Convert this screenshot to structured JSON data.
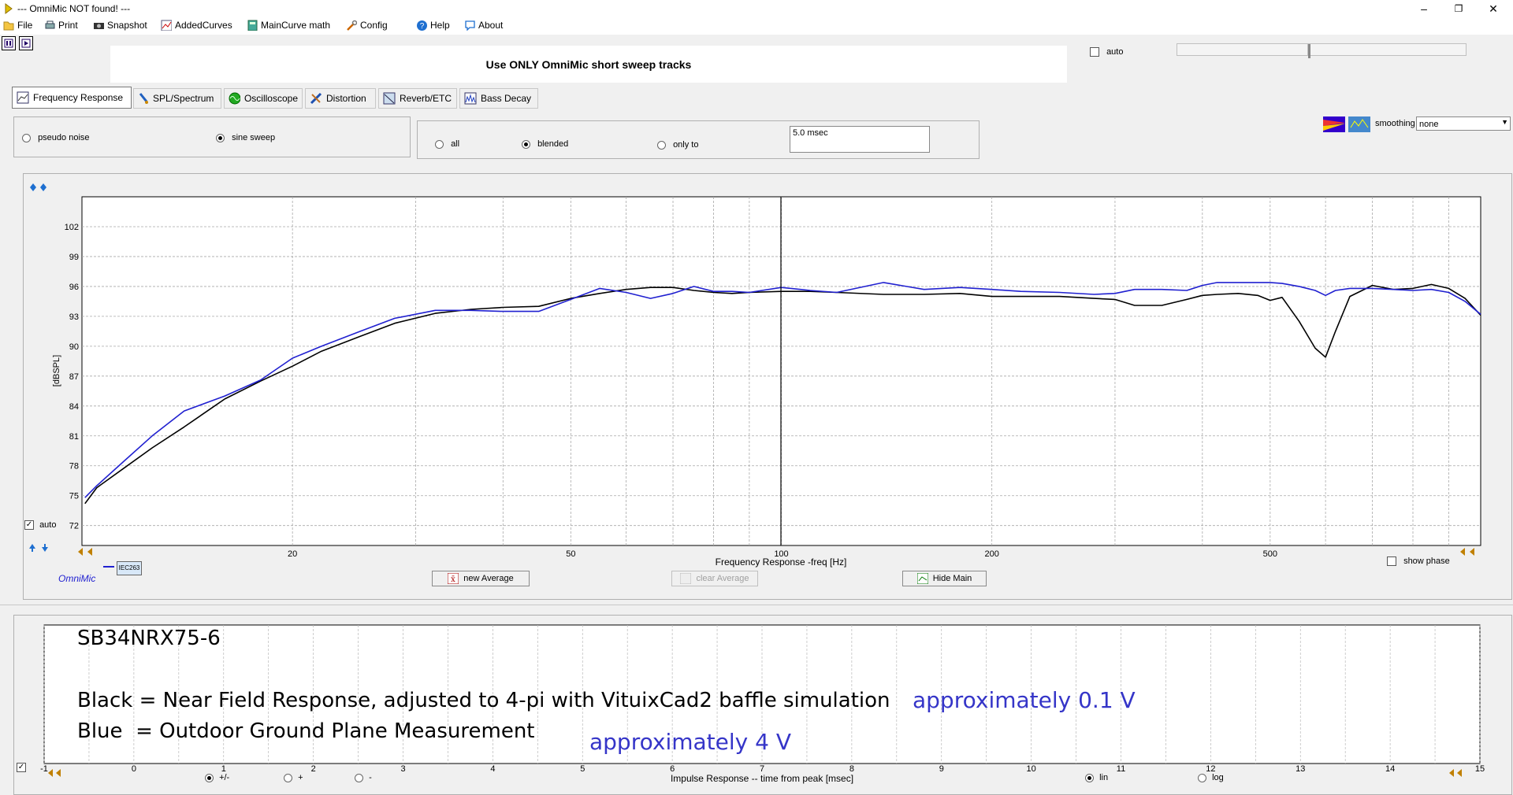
{
  "window": {
    "title": "--- OmniMic NOT found! ---"
  },
  "menu": [
    "File",
    "Print",
    "Snapshot",
    "AddedCurves",
    "MainCurve math",
    "Config",
    "Help",
    "About"
  ],
  "banner": "Use ONLY OmniMic short sweep tracks",
  "top_right": {
    "auto_label": "auto"
  },
  "tabs": [
    "Frequency Response",
    "SPL/Spectrum",
    "Oscilloscope",
    "Distortion",
    "Reverb/ETC",
    "Bass Decay"
  ],
  "signal": {
    "pseudo_noise": "pseudo noise",
    "sine_sweep": "sine sweep"
  },
  "gating": {
    "all": "all",
    "blended": "blended",
    "only_to": "only to",
    "gate_value": "5.0 msec"
  },
  "smoothing": {
    "label": "smoothing",
    "value": "none"
  },
  "colors": {
    "black_curve": "#000000",
    "blue_curve": "#2020d0",
    "grid": "#a0a0a0"
  },
  "chart_data": {
    "type": "line",
    "xlabel": "Frequency Response -freq [Hz]",
    "ylabel": "[dBSPL]",
    "xscale": "log",
    "xlim": [
      10,
      1000
    ],
    "ylim": [
      70,
      105
    ],
    "x_tick_labels": [
      "20",
      "50",
      "100",
      "200",
      "500"
    ],
    "y_tick_labels": [
      "72",
      "75",
      "78",
      "81",
      "84",
      "87",
      "90",
      "93",
      "96",
      "99",
      "102"
    ],
    "grid": true,
    "series": [
      {
        "color": "#000000",
        "x": [
          10.1,
          10.5,
          11.5,
          12.6,
          14,
          16,
          18,
          20,
          22,
          25,
          28,
          32,
          36,
          40,
          45,
          50,
          55,
          60,
          65,
          70,
          75,
          80,
          85,
          90,
          100,
          110,
          120,
          140,
          160,
          180,
          200,
          220,
          250,
          280,
          300,
          320,
          350,
          380,
          400,
          420,
          450,
          480,
          500,
          520,
          550,
          580,
          600,
          620,
          650,
          700,
          750,
          800,
          850,
          900,
          950,
          1000
        ],
        "y": [
          74.2,
          75.8,
          77.8,
          79.8,
          81.9,
          84.7,
          86.5,
          88.0,
          89.5,
          91.0,
          92.3,
          93.3,
          93.7,
          93.9,
          94.0,
          94.8,
          95.3,
          95.7,
          95.9,
          95.9,
          95.6,
          95.4,
          95.3,
          95.4,
          95.5,
          95.5,
          95.4,
          95.2,
          95.2,
          95.3,
          95.0,
          95.0,
          95.0,
          94.8,
          94.7,
          94.1,
          94.1,
          94.7,
          95.1,
          95.2,
          95.3,
          95.1,
          94.6,
          94.9,
          92.5,
          89.8,
          88.9,
          91.5,
          95.0,
          96.1,
          95.7,
          95.8,
          96.2,
          95.8,
          94.8,
          93.1
        ]
      },
      {
        "color": "#2020d0",
        "x": [
          10.1,
          10.5,
          11.5,
          12.6,
          14,
          16,
          18,
          20,
          22,
          25,
          28,
          32,
          36,
          40,
          45,
          50,
          55,
          60,
          65,
          70,
          75,
          80,
          85,
          90,
          100,
          110,
          120,
          140,
          160,
          180,
          200,
          220,
          250,
          280,
          300,
          320,
          350,
          380,
          400,
          420,
          450,
          480,
          500,
          520,
          550,
          580,
          600,
          620,
          650,
          700,
          750,
          800,
          850,
          900,
          950,
          1000
        ],
        "y": [
          74.8,
          76.0,
          78.5,
          81.0,
          83.5,
          85.0,
          86.6,
          88.8,
          90.0,
          91.5,
          92.8,
          93.6,
          93.6,
          93.5,
          93.5,
          94.7,
          95.8,
          95.4,
          94.8,
          95.3,
          96.0,
          95.5,
          95.5,
          95.4,
          95.9,
          95.6,
          95.4,
          96.4,
          95.7,
          95.9,
          95.7,
          95.5,
          95.4,
          95.2,
          95.3,
          95.7,
          95.7,
          95.6,
          96.1,
          96.4,
          96.4,
          96.4,
          96.4,
          96.3,
          96.0,
          95.6,
          95.1,
          95.6,
          95.8,
          95.8,
          95.7,
          95.6,
          95.7,
          95.4,
          94.5,
          93.2
        ]
      }
    ]
  },
  "chart_ui": {
    "auto_label": "auto",
    "show_phase": "show phase",
    "brand": "OmniMic",
    "badge": "IEC263"
  },
  "buttons": {
    "new_average": "new Average",
    "clear_average": "clear Average",
    "hide_main": "Hide Main"
  },
  "notes": {
    "line1": "SB34NRX75-6",
    "line2": "Black = Near Field Response, adjusted to 4-pi with VituixCad2 baffle simulation",
    "line3": "Blue  = Outdoor Ground Plane Measurement",
    "blue_note1": "approximately 0.1 V",
    "blue_note2": "approximately 4 V"
  },
  "impulse": {
    "xlabel": "Impulse Response  -- time from peak [msec]",
    "ticks": [
      "-1",
      "0",
      "1",
      "2",
      "3",
      "4",
      "5",
      "6",
      "7",
      "8",
      "9",
      "10",
      "11",
      "12",
      "13",
      "14",
      "15"
    ],
    "pol_plusminus": "+/-",
    "pol_plus": "+",
    "pol_minus": "-",
    "lin": "lin",
    "log": "log"
  }
}
